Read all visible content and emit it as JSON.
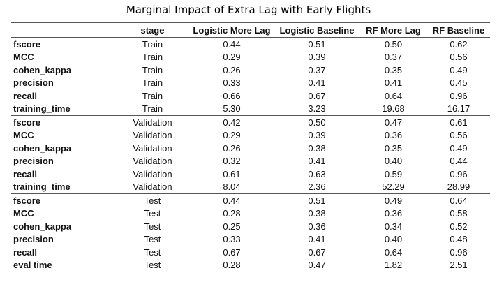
{
  "title": "Marginal Impact of Extra Lag with Early Flights",
  "columns": [
    "",
    "stage",
    "Logistic More Lag",
    "Logistic Baseline",
    "RF More Lag",
    "RF Baseline"
  ],
  "groups": [
    {
      "rows": [
        {
          "metric": "fscore",
          "stage": "Train",
          "lml": "0.44",
          "lb": "0.51",
          "rfml": "0.50",
          "rfb": "0.62"
        },
        {
          "metric": "MCC",
          "stage": "Train",
          "lml": "0.29",
          "lb": "0.39",
          "rfml": "0.37",
          "rfb": "0.56"
        },
        {
          "metric": "cohen_kappa",
          "stage": "Train",
          "lml": "0.26",
          "lb": "0.37",
          "rfml": "0.35",
          "rfb": "0.49"
        },
        {
          "metric": "precision",
          "stage": "Train",
          "lml": "0.33",
          "lb": "0.41",
          "rfml": "0.41",
          "rfb": "0.45"
        },
        {
          "metric": "recall",
          "stage": "Train",
          "lml": "0.66",
          "lb": "0.67",
          "rfml": "0.64",
          "rfb": "0.96"
        },
        {
          "metric": "training_time",
          "stage": "Train",
          "lml": "5.30",
          "lb": "3.23",
          "rfml": "19.68",
          "rfb": "16.17"
        }
      ]
    },
    {
      "rows": [
        {
          "metric": "fscore",
          "stage": "Validation",
          "lml": "0.42",
          "lb": "0.50",
          "rfml": "0.47",
          "rfb": "0.61"
        },
        {
          "metric": "MCC",
          "stage": "Validation",
          "lml": "0.29",
          "lb": "0.39",
          "rfml": "0.36",
          "rfb": "0.56"
        },
        {
          "metric": "cohen_kappa",
          "stage": "Validation",
          "lml": "0.26",
          "lb": "0.38",
          "rfml": "0.35",
          "rfb": "0.49"
        },
        {
          "metric": "precision",
          "stage": "Validation",
          "lml": "0.32",
          "lb": "0.41",
          "rfml": "0.40",
          "rfb": "0.44"
        },
        {
          "metric": "recall",
          "stage": "Validation",
          "lml": "0.61",
          "lb": "0.63",
          "rfml": "0.59",
          "rfb": "0.96"
        },
        {
          "metric": "training_time",
          "stage": "Validation",
          "lml": "8.04",
          "lb": "2.36",
          "rfml": "52.29",
          "rfb": "28.99"
        }
      ]
    },
    {
      "rows": [
        {
          "metric": "fscore",
          "stage": "Test",
          "lml": "0.44",
          "lb": "0.51",
          "rfml": "0.49",
          "rfb": "0.64"
        },
        {
          "metric": "MCC",
          "stage": "Test",
          "lml": "0.28",
          "lb": "0.38",
          "rfml": "0.36",
          "rfb": "0.58"
        },
        {
          "metric": "cohen_kappa",
          "stage": "Test",
          "lml": "0.25",
          "lb": "0.36",
          "rfml": "0.34",
          "rfb": "0.52"
        },
        {
          "metric": "precision",
          "stage": "Test",
          "lml": "0.33",
          "lb": "0.41",
          "rfml": "0.40",
          "rfb": "0.48"
        },
        {
          "metric": "recall",
          "stage": "Test",
          "lml": "0.67",
          "lb": "0.67",
          "rfml": "0.64",
          "rfb": "0.96"
        },
        {
          "metric": "eval time",
          "stage": "Test",
          "lml": "0.28",
          "lb": "0.47",
          "rfml": "1.82",
          "rfb": "2.51"
        }
      ]
    }
  ]
}
